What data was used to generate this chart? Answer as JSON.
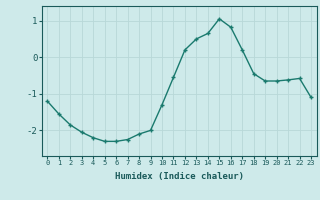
{
  "x": [
    0,
    1,
    2,
    3,
    4,
    5,
    6,
    7,
    8,
    9,
    10,
    11,
    12,
    13,
    14,
    15,
    16,
    17,
    18,
    19,
    20,
    21,
    22,
    23
  ],
  "y": [
    -1.2,
    -1.55,
    -1.85,
    -2.05,
    -2.2,
    -2.3,
    -2.3,
    -2.25,
    -2.1,
    -2.0,
    -1.3,
    -0.55,
    0.2,
    0.5,
    0.65,
    1.05,
    0.82,
    0.2,
    -0.45,
    -0.65,
    -0.65,
    -0.62,
    -0.58,
    -1.1
  ],
  "xlabel": "Humidex (Indice chaleur)",
  "ylabel": "",
  "xlim": [
    -0.5,
    23.5
  ],
  "ylim": [
    -2.7,
    1.4
  ],
  "yticks": [
    -2,
    -1,
    0,
    1
  ],
  "bg_color": "#ceeaea",
  "line_color": "#1a7a6e",
  "grid_color": "#b8d8d8",
  "text_color": "#1a5a5a"
}
